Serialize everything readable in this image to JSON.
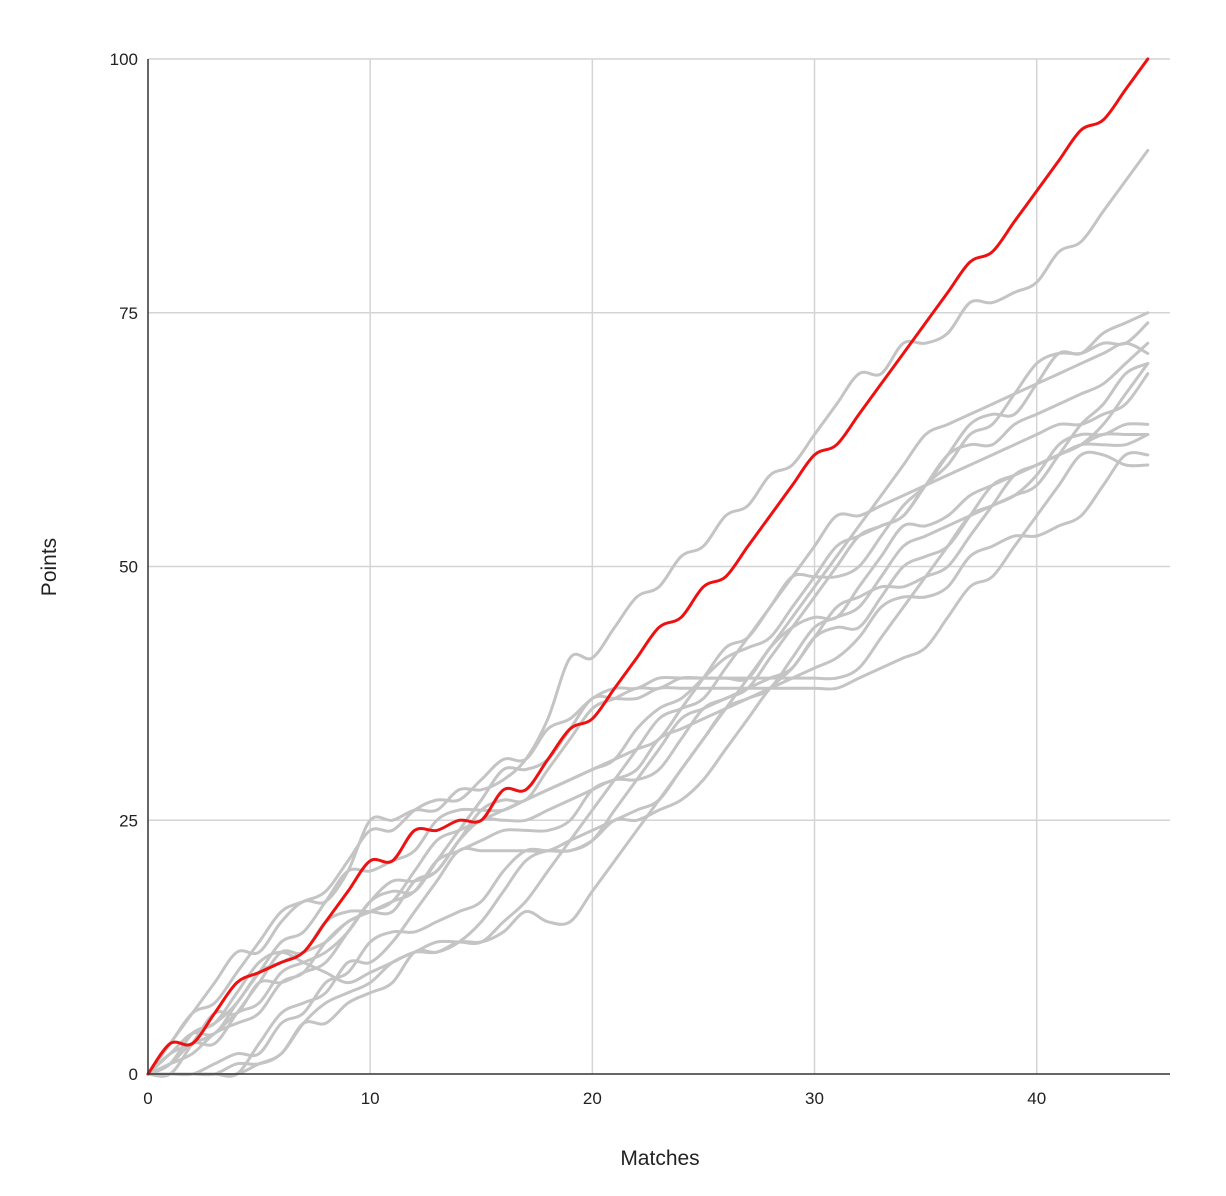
{
  "chart_data": {
    "type": "line",
    "title": "",
    "xlabel": "Matches",
    "ylabel": "Points",
    "xlim": [
      0,
      46
    ],
    "ylim": [
      0,
      100
    ],
    "x_ticks": [
      "0",
      "10",
      "20",
      "30",
      "40"
    ],
    "y_ticks": [
      "0",
      "25",
      "50",
      "75",
      "100"
    ],
    "grid": true,
    "legend": "none",
    "colors": {
      "highlight": "#ee1111",
      "others": "#c4c4c4",
      "grid": "#d4d4d4",
      "axis": "#333333"
    },
    "x": [
      0,
      1,
      2,
      3,
      4,
      5,
      6,
      7,
      8,
      9,
      10,
      11,
      12,
      13,
      14,
      15,
      16,
      17,
      18,
      19,
      20,
      21,
      22,
      23,
      24,
      25,
      26,
      27,
      28,
      29,
      30,
      31,
      32,
      33,
      34,
      35,
      36,
      37,
      38,
      39,
      40,
      41,
      42,
      43,
      44,
      45
    ],
    "series": [
      {
        "highlight": true,
        "values": [
          0,
          3,
          3,
          6,
          9,
          10,
          11,
          12,
          15,
          18,
          21,
          21,
          24,
          24,
          25,
          25,
          28,
          28,
          31,
          34,
          35,
          38,
          41,
          44,
          45,
          48,
          49,
          52,
          55,
          58,
          61,
          62,
          65,
          68,
          71,
          74,
          77,
          80,
          81,
          84,
          87,
          90,
          93,
          94,
          97,
          100
        ]
      },
      {
        "highlight": false,
        "values": [
          0,
          3,
          6,
          9,
          12,
          12,
          15,
          17,
          17,
          20,
          25,
          25,
          26,
          26,
          28,
          28,
          29,
          31,
          35,
          41,
          41,
          44,
          47,
          48,
          51,
          52,
          55,
          56,
          59,
          60,
          63,
          66,
          69,
          69,
          72,
          72,
          73,
          76,
          76,
          77,
          78,
          81,
          82,
          85,
          88,
          91
        ]
      },
      {
        "highlight": false,
        "values": [
          0,
          3,
          6,
          7,
          10,
          13,
          16,
          17,
          18,
          21,
          24,
          24,
          26,
          27,
          27,
          29,
          31,
          31,
          34,
          35,
          37,
          38,
          38,
          39,
          39,
          39,
          39,
          39,
          39,
          39,
          39,
          39,
          40,
          43,
          46,
          49,
          52,
          55,
          56,
          57,
          59,
          62,
          63,
          63,
          64,
          64
        ]
      },
      {
        "highlight": false,
        "values": [
          0,
          1,
          3,
          3,
          6,
          9,
          12,
          12,
          15,
          16,
          16,
          16,
          19,
          20,
          23,
          26,
          27,
          27,
          30,
          33,
          36,
          37,
          38,
          38,
          39,
          39,
          39,
          39,
          42,
          44,
          45,
          45,
          48,
          51,
          54,
          54,
          55,
          57,
          58,
          59,
          60,
          61,
          62,
          62,
          62,
          63
        ]
      },
      {
        "highlight": false,
        "values": [
          0,
          0,
          3,
          6,
          6,
          9,
          9,
          10,
          11,
          14,
          17,
          18,
          18,
          21,
          24,
          27,
          30,
          30,
          31,
          34,
          37,
          37,
          37,
          38,
          38,
          38,
          38,
          38,
          38,
          38,
          38,
          38,
          39,
          40,
          41,
          42,
          45,
          48,
          49,
          52,
          55,
          58,
          61,
          61,
          60,
          60
        ]
      },
      {
        "highlight": false,
        "values": [
          0,
          2,
          4,
          4,
          7,
          10,
          13,
          14,
          17,
          20,
          20,
          21,
          22,
          25,
          26,
          26,
          26,
          27,
          28,
          29,
          30,
          31,
          32,
          33,
          36,
          39,
          42,
          43,
          46,
          49,
          49,
          49,
          50,
          53,
          56,
          58,
          61,
          64,
          65,
          65,
          68,
          71,
          71,
          73,
          74,
          75
        ]
      },
      {
        "highlight": false,
        "values": [
          0,
          1,
          4,
          5,
          8,
          11,
          12,
          11,
          10,
          9,
          10,
          11,
          12,
          12,
          13,
          15,
          18,
          21,
          22,
          22,
          23,
          26,
          29,
          32,
          35,
          36,
          37,
          38,
          41,
          44,
          47,
          50,
          53,
          54,
          55,
          58,
          60,
          63,
          64,
          67,
          70,
          71,
          71,
          72,
          72,
          74
        ]
      },
      {
        "highlight": false,
        "values": [
          0,
          1,
          4,
          5,
          7,
          10,
          11,
          12,
          13,
          15,
          16,
          17,
          20,
          23,
          24,
          25,
          26,
          27,
          28,
          29,
          30,
          31,
          34,
          36,
          37,
          39,
          41,
          42,
          43,
          46,
          49,
          52,
          53,
          54,
          55,
          58,
          61,
          62,
          62,
          64,
          65,
          66,
          67,
          68,
          70,
          72
        ]
      },
      {
        "highlight": false,
        "values": [
          0,
          0,
          0,
          0,
          0,
          1,
          2,
          5,
          7,
          8,
          9,
          11,
          12,
          13,
          13,
          13,
          15,
          17,
          20,
          23,
          26,
          29,
          32,
          35,
          36,
          37,
          40,
          43,
          46,
          49,
          52,
          55,
          55,
          56,
          57,
          58,
          59,
          60,
          61,
          62,
          63,
          64,
          64,
          65,
          66,
          69
        ]
      },
      {
        "highlight": false,
        "values": [
          0,
          0,
          0,
          0,
          0,
          3,
          6,
          7,
          8,
          11,
          11,
          13,
          16,
          19,
          22,
          22,
          22,
          22,
          22,
          23,
          24,
          25,
          26,
          27,
          30,
          33,
          36,
          39,
          42,
          45,
          48,
          51,
          54,
          57,
          60,
          63,
          64,
          65,
          66,
          67,
          68,
          69,
          70,
          71,
          72,
          71
        ]
      },
      {
        "highlight": false,
        "values": [
          0,
          0,
          0,
          1,
          2,
          2,
          5,
          6,
          9,
          10,
          13,
          14,
          14,
          15,
          16,
          17,
          20,
          22,
          22,
          22,
          23,
          25,
          25,
          26,
          27,
          29,
          32,
          35,
          38,
          40,
          43,
          46,
          47,
          48,
          48,
          49,
          50,
          53,
          56,
          59,
          60,
          61,
          62,
          64,
          67,
          70
        ]
      },
      {
        "highlight": false,
        "values": [
          0,
          0,
          0,
          0,
          1,
          1,
          2,
          5,
          5,
          7,
          8,
          9,
          12,
          12,
          13,
          13,
          14,
          16,
          15,
          15,
          18,
          21,
          24,
          27,
          30,
          33,
          36,
          37,
          38,
          39,
          40,
          41,
          43,
          46,
          47,
          47,
          48,
          51,
          52,
          53,
          53,
          54,
          55,
          58,
          61,
          61
        ]
      },
      {
        "highlight": false,
        "values": [
          0,
          2,
          3,
          4,
          6,
          7,
          10,
          11,
          12,
          14,
          17,
          19,
          19,
          20,
          23,
          25,
          25,
          25,
          26,
          27,
          28,
          29,
          29,
          30,
          33,
          36,
          37,
          38,
          39,
          40,
          43,
          44,
          44,
          47,
          50,
          51,
          52,
          55,
          58,
          59,
          60,
          61,
          62,
          63,
          63,
          63
        ]
      },
      {
        "highlight": false,
        "values": [
          0,
          1,
          2,
          4,
          5,
          6,
          9,
          10,
          13,
          15,
          16,
          17,
          18,
          21,
          22,
          23,
          24,
          24,
          24,
          25,
          28,
          29,
          30,
          33,
          34,
          35,
          36,
          37,
          38,
          41,
          44,
          45,
          46,
          49,
          52,
          53,
          54,
          55,
          56,
          57,
          58,
          61,
          64,
          66,
          69,
          70
        ]
      }
    ]
  }
}
